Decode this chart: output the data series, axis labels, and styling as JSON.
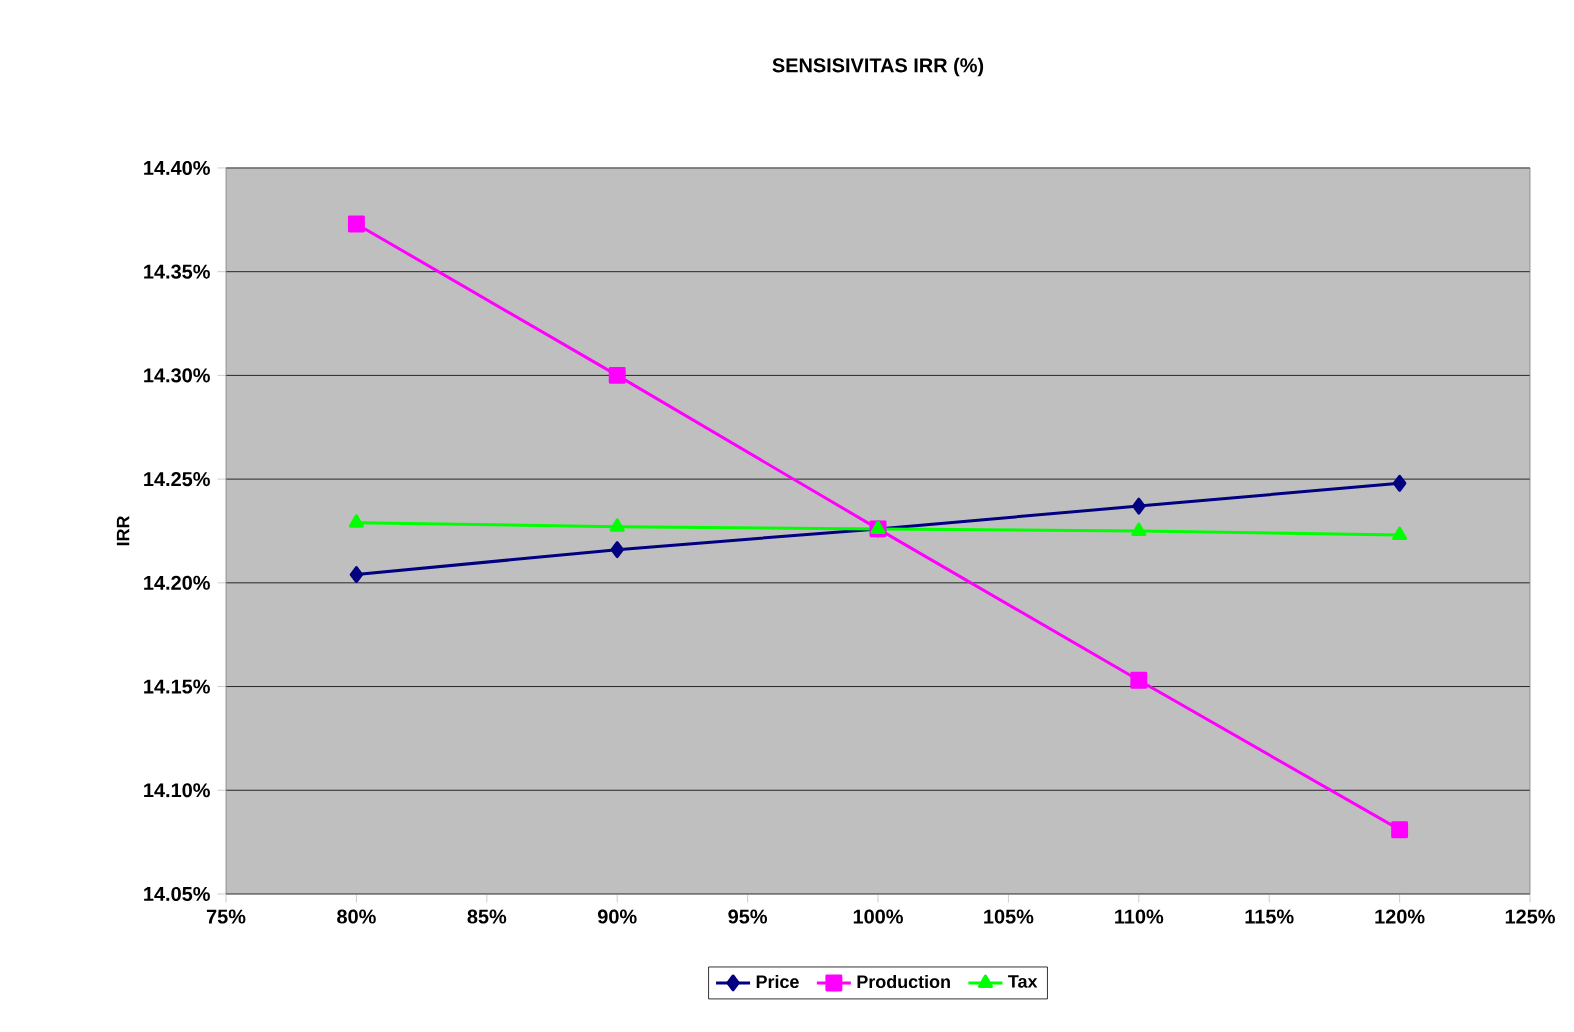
{
  "chart_data": {
    "type": "line",
    "title": "SENSISIVITAS IRR (%)",
    "ylabel": "IRR",
    "x": [
      80,
      90,
      100,
      110,
      120
    ],
    "series": [
      {
        "name": "Price",
        "color": "#000080",
        "marker": "diamond",
        "values": [
          14.204,
          14.216,
          14.226,
          14.237,
          14.248
        ]
      },
      {
        "name": "Production",
        "color": "#ff00ff",
        "marker": "square",
        "values": [
          14.373,
          14.3,
          14.226,
          14.153,
          14.081
        ]
      },
      {
        "name": "Tax",
        "color": "#00ff00",
        "marker": "triangle",
        "values": [
          14.229,
          14.227,
          14.226,
          14.225,
          14.223
        ]
      }
    ],
    "xlim": [
      75,
      125
    ],
    "xticks": [
      {
        "value": 75,
        "label": "75%"
      },
      {
        "value": 80,
        "label": "80%"
      },
      {
        "value": 85,
        "label": "85%"
      },
      {
        "value": 90,
        "label": "90%"
      },
      {
        "value": 95,
        "label": "95%"
      },
      {
        "value": 100,
        "label": "100%"
      },
      {
        "value": 105,
        "label": "105%"
      },
      {
        "value": 110,
        "label": "110%"
      },
      {
        "value": 115,
        "label": "115%"
      },
      {
        "value": 120,
        "label": "120%"
      },
      {
        "value": 125,
        "label": "125%"
      }
    ],
    "ylim": [
      14.05,
      14.4
    ],
    "yticks": [
      {
        "value": 14.05,
        "label": "14.05%"
      },
      {
        "value": 14.1,
        "label": "14.10%"
      },
      {
        "value": 14.15,
        "label": "14.15%"
      },
      {
        "value": 14.2,
        "label": "14.20%"
      },
      {
        "value": 14.25,
        "label": "14.25%"
      },
      {
        "value": 14.3,
        "label": "14.30%"
      },
      {
        "value": 14.35,
        "label": "14.35%"
      },
      {
        "value": 14.4,
        "label": "14.40%"
      }
    ],
    "grid": "y",
    "legend": "bottom"
  }
}
